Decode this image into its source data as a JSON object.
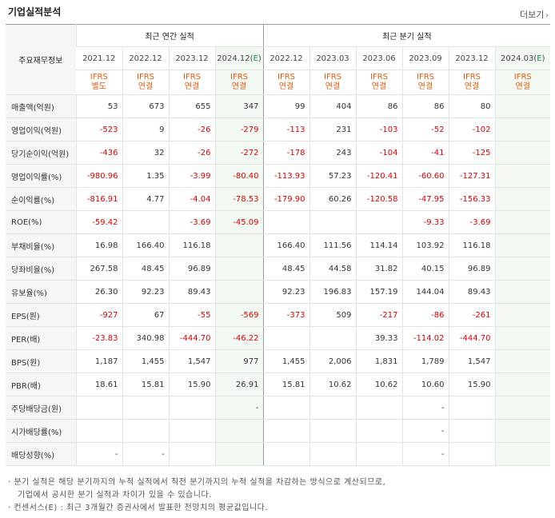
{
  "header": {
    "title": "기업실적분석",
    "more_label": "더보기",
    "more_icon": "chevron-right-icon"
  },
  "table": {
    "row_header": "주요재무정보",
    "group_annual": "최근 연간 실적",
    "group_quarterly": "최근 분기 실적",
    "annual_periods": [
      "2021.12",
      "2022.12",
      "2023.12",
      "2024.12(E)"
    ],
    "quarter_periods": [
      "2022.12",
      "2023.03",
      "2023.06",
      "2023.09",
      "2023.12",
      "2024.03(E)"
    ],
    "ifrs_line1": [
      "IFRS",
      "IFRS",
      "IFRS",
      "IFRS",
      "IFRS",
      "IFRS",
      "IFRS",
      "IFRS",
      "IFRS",
      "IFRS"
    ],
    "ifrs_line2": [
      "별도",
      "연결",
      "연결",
      "연결",
      "연결",
      "연결",
      "연결",
      "연결",
      "연결",
      "연결"
    ],
    "rows": [
      {
        "label": "매출액(억원)",
        "values": [
          "53",
          "673",
          "655",
          "347",
          "99",
          "404",
          "86",
          "86",
          "80",
          ""
        ]
      },
      {
        "label": "영업이익(억원)",
        "values": [
          "-523",
          "9",
          "-26",
          "-279",
          "-113",
          "231",
          "-103",
          "-52",
          "-102",
          ""
        ]
      },
      {
        "label": "당기순이익(억원)",
        "values": [
          "-436",
          "32",
          "-26",
          "-272",
          "-178",
          "243",
          "-104",
          "-41",
          "-125",
          ""
        ]
      },
      {
        "label": "영업이익률(%)",
        "values": [
          "-980.96",
          "1.35",
          "-3.99",
          "-80.40",
          "-113.93",
          "57.23",
          "-120.41",
          "-60.60",
          "-127.31",
          ""
        ]
      },
      {
        "label": "순이익률(%)",
        "values": [
          "-816.91",
          "4.77",
          "-4.04",
          "-78.53",
          "-179.90",
          "60.26",
          "-120.58",
          "-47.95",
          "-156.33",
          ""
        ]
      },
      {
        "label": "ROE(%)",
        "values": [
          "-59.42",
          "",
          "-3.69",
          "-45.09",
          "",
          "",
          "",
          "-9.33",
          "-3.69",
          ""
        ]
      },
      {
        "label": "부채비율(%)",
        "values": [
          "16.98",
          "166.40",
          "116.18",
          "",
          "166.40",
          "111.56",
          "114.14",
          "103.92",
          "116.18",
          ""
        ]
      },
      {
        "label": "당좌비율(%)",
        "values": [
          "267.58",
          "48.45",
          "96.89",
          "",
          "48.45",
          "44.58",
          "31.82",
          "40.15",
          "96.89",
          ""
        ]
      },
      {
        "label": "유보율(%)",
        "values": [
          "26.30",
          "92.23",
          "89.43",
          "",
          "92.23",
          "196.83",
          "157.19",
          "144.04",
          "89.43",
          ""
        ]
      },
      {
        "label": "EPS(원)",
        "values": [
          "-927",
          "67",
          "-55",
          "-569",
          "-373",
          "509",
          "-217",
          "-86",
          "-261",
          ""
        ]
      },
      {
        "label": "PER(배)",
        "values": [
          "-23.83",
          "340.98",
          "-444.70",
          "-46.22",
          "",
          "",
          "39.33",
          "-114.02",
          "-444.70",
          ""
        ]
      },
      {
        "label": "BPS(원)",
        "values": [
          "1,187",
          "1,455",
          "1,547",
          "977",
          "1,455",
          "2,006",
          "1,831",
          "1,789",
          "1,547",
          ""
        ]
      },
      {
        "label": "PBR(배)",
        "values": [
          "18.61",
          "15.81",
          "15.90",
          "26.91",
          "15.81",
          "10.62",
          "10.62",
          "10.60",
          "15.90",
          ""
        ]
      },
      {
        "label": "주당배당금(원)",
        "values": [
          "",
          "",
          "",
          "-",
          "",
          "",
          "",
          "-",
          "",
          ""
        ]
      },
      {
        "label": "시가배당률(%)",
        "values": [
          "",
          "",
          "",
          "",
          "",
          "",
          "",
          "-",
          "",
          ""
        ]
      },
      {
        "label": "배당성향(%)",
        "values": [
          "-",
          "-",
          "",
          "",
          "",
          "",
          "",
          "-",
          "",
          ""
        ]
      }
    ]
  },
  "notes": [
    "· 분기 실적은 해당 분기까지의 누적 실적에서 직전 분기까지의 누적 실적을 차감하는 방식으로 계산되므로,",
    "기업에서 공시한 분기 실적과 차이가 있을 수 있습니다.",
    "· 컨센서스(E) : 최근 3개월간 증권사에서 발표한 전망치의 평균값입니다."
  ],
  "colors": {
    "negative": "#e00000",
    "ifrs": "#ea5b0c",
    "estimate_bg": "#f2f9f2",
    "estimate_mark": "#1c8a44"
  }
}
